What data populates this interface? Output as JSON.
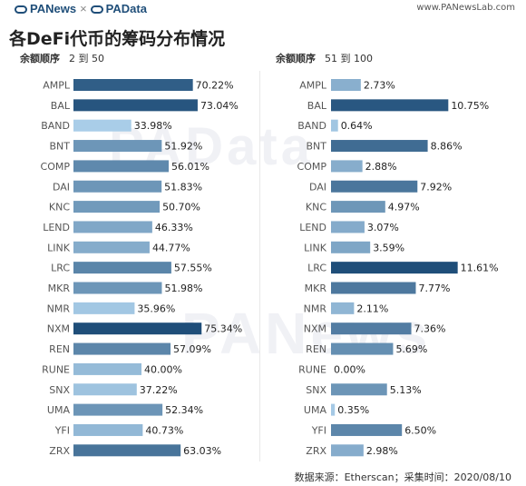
{
  "header": {
    "brand_left": "PANews",
    "brand_sep": "×",
    "brand_right": "PAData",
    "site": "www.PANewsLab.com"
  },
  "title": "各DeFi代币的筹码分布情况",
  "panels": [
    {
      "key_label": "余额顺序",
      "range_label": "2 到 50"
    },
    {
      "key_label": "余额顺序",
      "range_label": "51 到 100"
    }
  ],
  "footer": "数据来源：Etherscan；采集时间：2020/08/10",
  "watermarks": [
    "PAData",
    "PANews"
  ],
  "colors": {
    "light": "#a9cde8",
    "dark": "#1f4e79"
  },
  "chart_data": [
    {
      "type": "bar",
      "orientation": "horizontal",
      "categories": [
        "AMPL",
        "BAL",
        "BAND",
        "BNT",
        "COMP",
        "DAI",
        "KNC",
        "LEND",
        "LINK",
        "LRC",
        "MKR",
        "NMR",
        "NXM",
        "REN",
        "RUNE",
        "SNX",
        "UMA",
        "YFI",
        "ZRX"
      ],
      "values": [
        70.22,
        73.04,
        33.98,
        51.92,
        56.01,
        51.83,
        50.7,
        46.33,
        44.77,
        57.55,
        51.98,
        35.96,
        75.34,
        57.09,
        40.0,
        37.22,
        52.34,
        40.73,
        63.03
      ],
      "labels": [
        "70.22%",
        "73.04%",
        "33.98%",
        "51.92%",
        "56.01%",
        "51.83%",
        "50.70%",
        "46.33%",
        "44.77%",
        "57.55%",
        "51.98%",
        "35.96%",
        "75.34%",
        "57.09%",
        "40.00%",
        "37.22%",
        "52.34%",
        "40.73%",
        "63.03%"
      ],
      "unit": "%"
    },
    {
      "type": "bar",
      "orientation": "horizontal",
      "categories": [
        "AMPL",
        "BAL",
        "BAND",
        "BNT",
        "COMP",
        "DAI",
        "KNC",
        "LEND",
        "LINK",
        "LRC",
        "MKR",
        "NMR",
        "NXM",
        "REN",
        "RUNE",
        "SNX",
        "UMA",
        "YFI",
        "ZRX"
      ],
      "values": [
        2.73,
        10.75,
        0.64,
        8.86,
        2.88,
        7.92,
        4.97,
        3.07,
        3.59,
        11.61,
        7.77,
        2.11,
        7.36,
        5.69,
        0.0,
        5.13,
        0.35,
        6.5,
        2.98
      ],
      "labels": [
        "2.73%",
        "10.75%",
        "0.64%",
        "8.86%",
        "2.88%",
        "7.92%",
        "4.97%",
        "3.07%",
        "3.59%",
        "11.61%",
        "7.77%",
        "2.11%",
        "7.36%",
        "5.69%",
        "0.00%",
        "5.13%",
        "0.35%",
        "6.50%",
        "2.98%"
      ],
      "unit": "%"
    }
  ]
}
